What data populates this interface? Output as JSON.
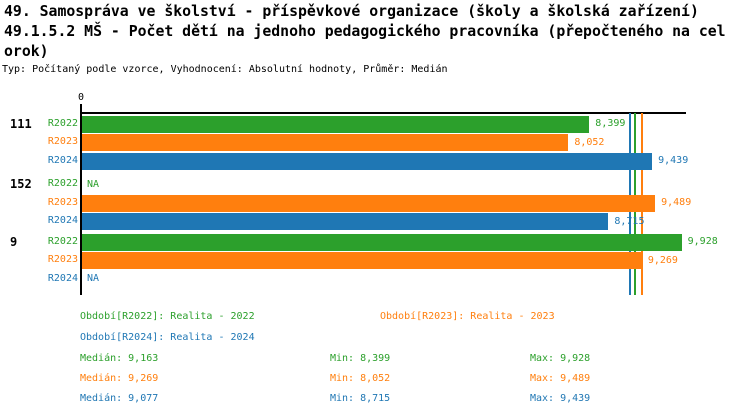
{
  "header": {
    "title_line1": "49. Samospráva ve školství - příspěvkové organizace (školy a školská zařízení)",
    "title_line2": "49.1.5.2 MŠ - Počet dětí na jednoho pedagogického pracovníka (přepočteného na cel",
    "title_line3": "orok)",
    "subtitle": "Typ: Počítaný podle vzorce, Vyhodnocení: Absolutní hodnoty, Průměr: Medián"
  },
  "colors": {
    "R2022": "#2ca02c",
    "R2023": "#ff7f0e",
    "R2024": "#1f77b4",
    "axis": "#000000"
  },
  "chart_data": {
    "type": "bar",
    "orientation": "horizontal",
    "title": "49.1.5.2 MŠ - Počet dětí na jednoho pedagogického pracovníka (přepočteného na celorok)",
    "xlabel": "",
    "ylabel": "",
    "xlim": [
      0,
      10000
    ],
    "grid": false,
    "zero_tick_label": "0",
    "na_text": "NA",
    "series_names": [
      "R2022",
      "R2023",
      "R2024"
    ],
    "groups": [
      {
        "label": "111",
        "rows": [
          {
            "series": "R2022",
            "value": 8399,
            "display": "8,399"
          },
          {
            "series": "R2023",
            "value": 8052,
            "display": "8,052"
          },
          {
            "series": "R2024",
            "value": 9439,
            "display": "9,439"
          }
        ]
      },
      {
        "label": "152",
        "rows": [
          {
            "series": "R2022",
            "value": null,
            "display": "NA"
          },
          {
            "series": "R2023",
            "value": 9489,
            "display": "9,489"
          },
          {
            "series": "R2024",
            "value": 8715,
            "display": "8,715"
          }
        ]
      },
      {
        "label": "9",
        "rows": [
          {
            "series": "R2022",
            "value": 9928,
            "display": "9,928"
          },
          {
            "series": "R2023",
            "value": 9269,
            "display": "9,269"
          },
          {
            "series": "R2024",
            "value": null,
            "display": "NA"
          }
        ]
      }
    ],
    "median_lines": [
      {
        "series": "R2024",
        "value": 9077
      },
      {
        "series": "R2022",
        "value": 9163
      },
      {
        "series": "R2023",
        "value": 9269
      }
    ],
    "legend": [
      {
        "series": "R2022",
        "label": "Období[R2022]: Realita - 2022"
      },
      {
        "series": "R2023",
        "label": "Období[R2023]: Realita - 2023"
      },
      {
        "series": "R2024",
        "label": "Období[R2024]: Realita - 2024"
      }
    ],
    "stats": [
      {
        "series": "R2022",
        "median": "Medián: 9,163",
        "min": "Min: 8,399",
        "max": "Max: 9,928"
      },
      {
        "series": "R2023",
        "median": "Medián: 9,269",
        "min": "Min: 8,052",
        "max": "Max: 9,489"
      },
      {
        "series": "R2024",
        "median": "Medián: 9,077",
        "min": "Min: 8,715",
        "max": "Max: 9,439"
      }
    ]
  }
}
